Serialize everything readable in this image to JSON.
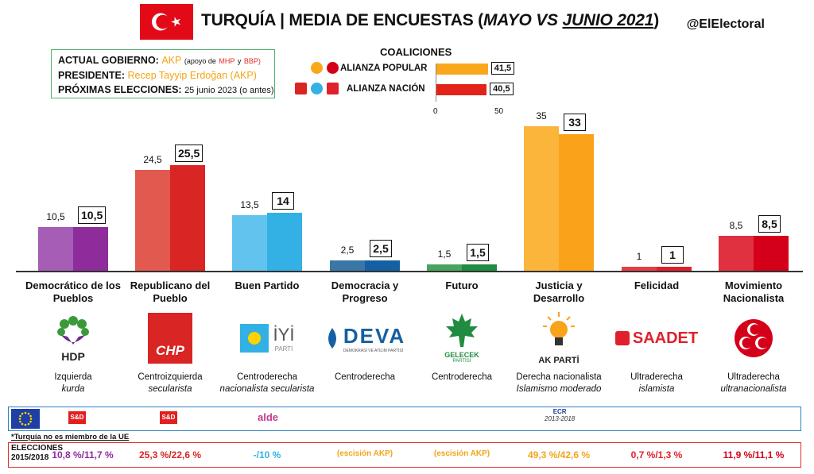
{
  "header": {
    "title_main": "TURQUÍA | MEDIA DE ENCUESTAS (",
    "title_months": "MAYO VS",
    "title_junio": "JUNIO 2021",
    "title_close": ")",
    "handle": "@ElElectoral"
  },
  "info": {
    "gov_label": "ACTUAL GOBIERNO:",
    "gov_value": "AKP",
    "gov_support_a": "(apoyo de",
    "gov_support_mhp": "MHP",
    "gov_support_and": "y",
    "gov_support_bbp": "BBP)",
    "pres_label": "PRESIDENTE:",
    "pres_value": "Recep Tayyip Erdoğan (AKP)",
    "elec_label": "PRÓXIMAS ELECCIONES:",
    "elec_value": "25 junio 2023 (o antes)"
  },
  "coalitions": {
    "title": "COALICIONES",
    "items": [
      {
        "name": "ALIANZA POPULAR",
        "value": 41.5,
        "label": "41,5",
        "color": "#f9a81b"
      },
      {
        "name": "ALIANZA NACIÓN",
        "value": 40.5,
        "label": "40,5",
        "color": "#e2231a"
      }
    ],
    "ticks": [
      "0",
      "50"
    ],
    "xlim": [
      0,
      50
    ]
  },
  "chart_data": {
    "type": "bar",
    "categories": [
      "Democrático de los Pueblos",
      "Republicano del Pueblo",
      "Buen Partido",
      "Democracia y Progreso",
      "Futuro",
      "Justicia y Desarrollo",
      "Felicidad",
      "Movimiento Nacionalista"
    ],
    "series": [
      {
        "name": "MAYO",
        "values": [
          10.5,
          24.5,
          13.5,
          2.5,
          1.5,
          35,
          1,
          8.5
        ],
        "labels": [
          "10,5",
          "24,5",
          "13,5",
          "2,5",
          "1,5",
          "35",
          "1",
          "8,5"
        ]
      },
      {
        "name": "JUNIO 2021",
        "values": [
          10.5,
          25.5,
          14,
          2.5,
          1.5,
          33,
          1,
          8.5
        ],
        "labels": [
          "10,5",
          "25,5",
          "14",
          "2,5",
          "1,5",
          "33",
          "1",
          "8,5"
        ]
      }
    ],
    "colors_old": [
      "#a55db5",
      "#e25a4f",
      "#62c3ee",
      "#3a77a6",
      "#48a35e",
      "#fbb53b",
      "#e63d45",
      "#e03140"
    ],
    "colors_new": [
      "#8e2c9c",
      "#d92523",
      "#33b0e4",
      "#1560a2",
      "#1f8c41",
      "#f9a21a",
      "#e0202c",
      "#d4001a"
    ],
    "ylim": [
      0,
      40
    ]
  },
  "parties": [
    {
      "name": "Democrático de los Pueblos",
      "logo_text": "HDP",
      "ideology_1": "Izquierda",
      "ideology_2": "kurda"
    },
    {
      "name": "Republicano del Pueblo",
      "logo_text": "CHP",
      "ideology_1": "Centroizquierda",
      "ideology_2": "secularista"
    },
    {
      "name": "Buen Partido",
      "logo_text": "İYİ",
      "logo_sub": "PARTİ",
      "ideology_1": "Centroderecha",
      "ideology_2": "nacionalista secularista"
    },
    {
      "name": "Democracia y Progreso",
      "logo_text": "DEVA",
      "logo_sub": "DEMOKRASİ VE ATILIM PARTİSİ",
      "ideology_1": "Centroderecha",
      "ideology_2": ""
    },
    {
      "name": "Futuro",
      "logo_text": "GELECEK",
      "logo_sub": "PARTİSİ",
      "ideology_1": "Centroderecha",
      "ideology_2": ""
    },
    {
      "name": "Justicia y Desarrollo",
      "logo_text": "AK PARTİ",
      "ideology_1": "Derecha nacionalista",
      "ideology_2": "Islamismo moderado"
    },
    {
      "name": "Felicidad",
      "logo_text": "SAADET",
      "ideology_1": "Ultraderecha",
      "ideology_2": "islamista"
    },
    {
      "name": "Movimiento Nacionalista",
      "logo_text": "",
      "ideology_1": "Ultraderecha",
      "ideology_2": "ultranacionalista"
    }
  ],
  "eu": {
    "sd_label": "S&D",
    "alde_label": "alde",
    "ecr_label": "ECR",
    "ecr_years": "2013-2018",
    "note": "*Turquía no es miembro de la UE"
  },
  "elections": {
    "label_1": "ELECCIONES",
    "label_2": "2015/2018",
    "values": [
      "10,8 %/11,7 %",
      "25,3 %/22,6 %",
      "-/10 %",
      "(escisión AKP)",
      "(escisión AKP)",
      "49,3 %/42,6 %",
      "0,7 %/1,3 %",
      "11,9 %/11,1 %"
    ],
    "colors": [
      "#8e2c9c",
      "#d92523",
      "#33b0e4",
      "#f3a417",
      "#f3a417",
      "#f3a417",
      "#e0202c",
      "#d4001a"
    ]
  },
  "mini_logos": {
    "akp": "AK PARTİ",
    "chp": "CHP"
  }
}
